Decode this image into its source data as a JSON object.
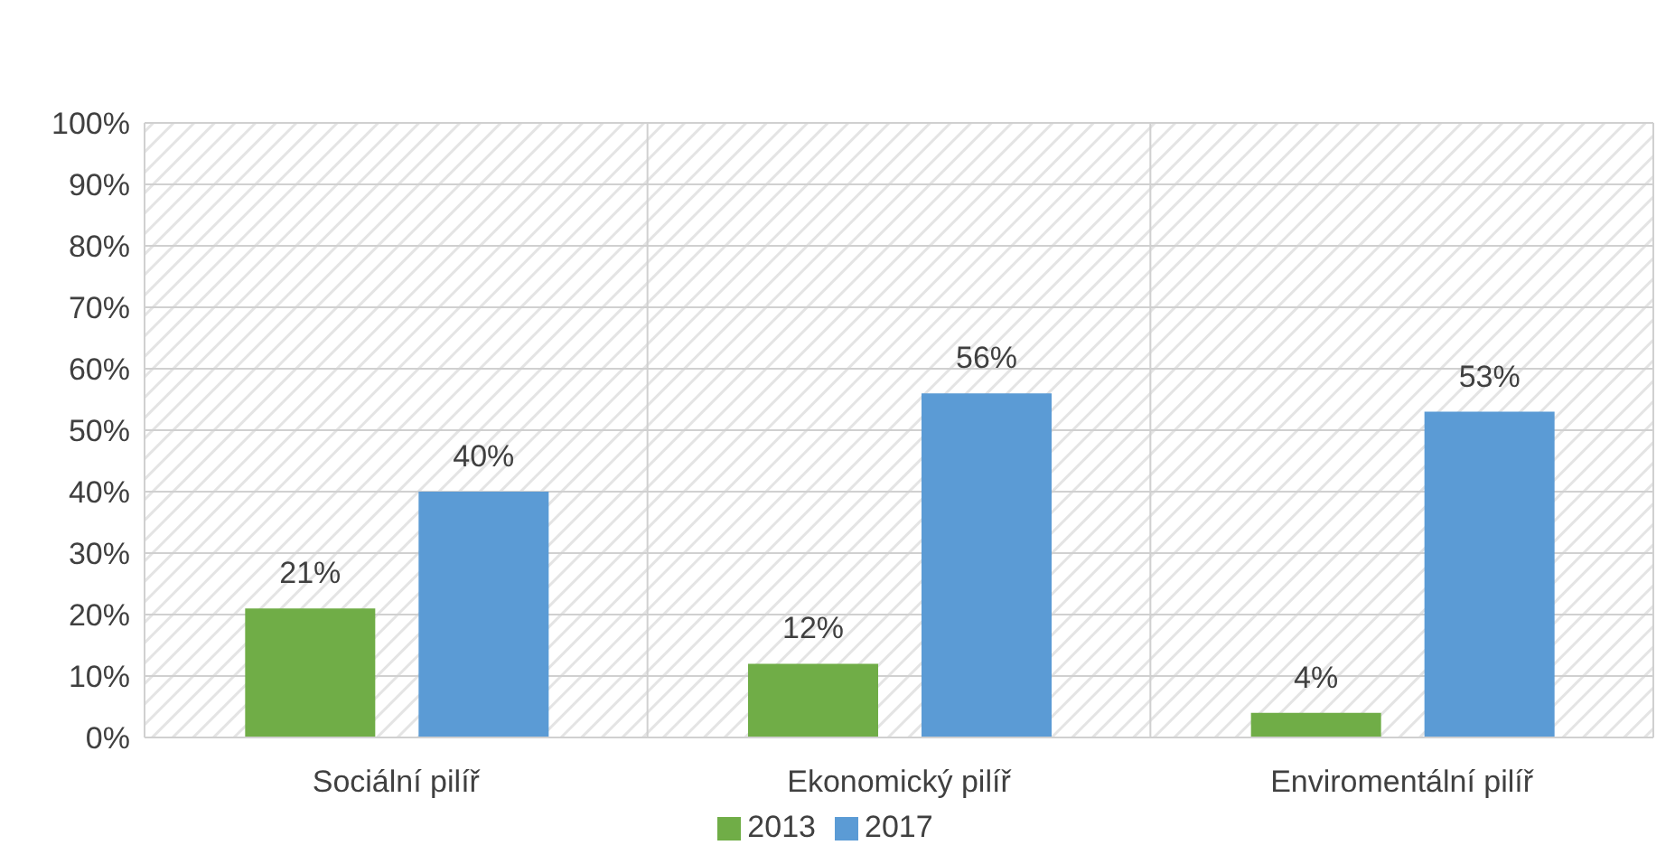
{
  "chart_data": {
    "type": "bar",
    "categories": [
      "Sociální pilíř",
      "Ekonomický pilíř",
      "Enviromentální pilíř"
    ],
    "series": [
      {
        "name": "2013",
        "color": "#70ad47",
        "values": [
          21,
          12,
          4
        ],
        "value_labels": [
          "21%",
          "12%",
          "4%"
        ]
      },
      {
        "name": "2017",
        "color": "#5b9bd5",
        "values": [
          40,
          56,
          53
        ],
        "value_labels": [
          "40%",
          "56%",
          "53%"
        ]
      }
    ],
    "ylim": [
      0,
      100
    ],
    "yticks": [
      {
        "value": 0,
        "label": "0%"
      },
      {
        "value": 10,
        "label": "10%"
      },
      {
        "value": 20,
        "label": "20%"
      },
      {
        "value": 30,
        "label": "30%"
      },
      {
        "value": 40,
        "label": "40%"
      },
      {
        "value": 50,
        "label": "50%"
      },
      {
        "value": 60,
        "label": "60%"
      },
      {
        "value": 70,
        "label": "70%"
      },
      {
        "value": 80,
        "label": "80%"
      },
      {
        "value": 90,
        "label": "90%"
      },
      {
        "value": 100,
        "label": "100%"
      }
    ],
    "grid": true,
    "legend": "bottom"
  }
}
